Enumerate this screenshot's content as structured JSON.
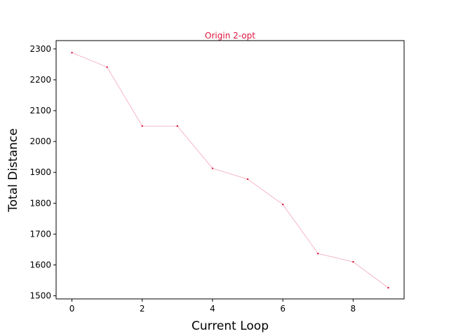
{
  "chart_data": {
    "type": "line",
    "title": "Origin 2-opt",
    "xlabel": "Current Loop",
    "ylabel": "Total Distance",
    "x": [
      0,
      1,
      2,
      3,
      4,
      5,
      6,
      7,
      8,
      9
    ],
    "series": [
      {
        "values": [
          2288,
          2241,
          2050,
          2050,
          1913,
          1878,
          1796,
          1637,
          1610,
          1526
        ]
      }
    ],
    "xlim": [
      -0.45,
      9.45
    ],
    "ylim": [
      1490,
      2327
    ],
    "xticks": [
      0,
      2,
      4,
      6,
      8
    ],
    "yticks": [
      1500,
      1600,
      1700,
      1800,
      1900,
      2000,
      2100,
      2200,
      2300
    ],
    "grid": false,
    "line_color": "#f4a6b8",
    "marker_color": "#dc143c",
    "title_color": "#dc143c"
  }
}
